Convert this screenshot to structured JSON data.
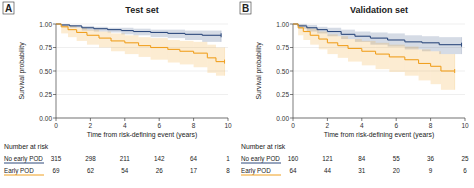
{
  "chart_data": [
    {
      "type": "line",
      "panel_label": "A",
      "title": "Test set",
      "x_label": "Time from risk-defining event (years)",
      "y_label": "Survival probability",
      "xlim": [
        0,
        10
      ],
      "ylim": [
        0,
        1
      ],
      "xticks": [
        0,
        2,
        4,
        6,
        8,
        10
      ],
      "yticks": [
        {
          "value": 0,
          "label": "0.00"
        },
        0.25,
        {
          "value": 0.5,
          "label": "0.50"
        },
        0.75,
        {
          "value": 1,
          "label": "1.00"
        }
      ],
      "line_style": "step",
      "risk_title": "Number at risk",
      "risk_times": [
        0,
        2,
        4,
        6,
        8,
        10
      ],
      "series": [
        {
          "name": "No early POD",
          "color": "#2e4a7d",
          "x": [
            0,
            0.3,
            0.8,
            1.5,
            2.2,
            3,
            3.8,
            4.5,
            5.5,
            6.5,
            7.5,
            8.5,
            9.6
          ],
          "values": [
            1,
            0.99,
            0.98,
            0.96,
            0.95,
            0.94,
            0.93,
            0.92,
            0.91,
            0.9,
            0.89,
            0.88,
            0.88
          ],
          "ci_lower": [
            1,
            0.97,
            0.96,
            0.93,
            0.92,
            0.91,
            0.89,
            0.88,
            0.86,
            0.85,
            0.83,
            0.81,
            0.81
          ],
          "ci_upper": [
            1,
            1,
            0.99,
            0.98,
            0.97,
            0.96,
            0.96,
            0.95,
            0.94,
            0.94,
            0.93,
            0.93,
            0.93
          ],
          "at_risk": [
            315,
            298,
            211,
            142,
            64,
            1
          ]
        },
        {
          "name": "Early POD",
          "color": "#f0a020",
          "x": [
            0,
            0.3,
            0.7,
            1.2,
            1.8,
            2.5,
            3.2,
            4,
            4.8,
            5.5,
            6.5,
            7.2,
            8,
            8.8,
            9.3,
            9.8
          ],
          "values": [
            1,
            0.97,
            0.94,
            0.91,
            0.88,
            0.85,
            0.82,
            0.8,
            0.77,
            0.75,
            0.73,
            0.71,
            0.69,
            0.64,
            0.6,
            0.6
          ],
          "ci_lower": [
            1,
            0.9,
            0.86,
            0.82,
            0.78,
            0.75,
            0.71,
            0.68,
            0.65,
            0.62,
            0.59,
            0.57,
            0.54,
            0.48,
            0.45,
            0.45
          ],
          "ci_upper": [
            1,
            0.99,
            0.98,
            0.96,
            0.94,
            0.92,
            0.9,
            0.88,
            0.86,
            0.85,
            0.83,
            0.82,
            0.81,
            0.78,
            0.75,
            0.75
          ],
          "at_risk": [
            69,
            62,
            54,
            26,
            17,
            8
          ]
        }
      ]
    },
    {
      "type": "line",
      "panel_label": "B",
      "title": "Validation set",
      "x_label": "Time from risk-defining event (years)",
      "y_label": "Survival probability",
      "xlim": [
        0,
        10
      ],
      "ylim": [
        0,
        1
      ],
      "xticks": [
        0,
        2,
        4,
        6,
        8,
        10
      ],
      "yticks": [
        {
          "value": 0,
          "label": "0.00"
        },
        0.25,
        {
          "value": 0.5,
          "label": "0.50"
        },
        0.75,
        {
          "value": 1,
          "label": "1.00"
        }
      ],
      "line_style": "step",
      "risk_title": "Number at risk",
      "risk_times": [
        0,
        2,
        4,
        6,
        8,
        10
      ],
      "series": [
        {
          "name": "No early POD",
          "color": "#2e4a7d",
          "x": [
            0,
            0.3,
            0.8,
            1.4,
            2,
            2.8,
            3.6,
            4.5,
            5.5,
            6.5,
            7.5,
            8.5,
            9.8
          ],
          "values": [
            1,
            0.98,
            0.96,
            0.94,
            0.92,
            0.89,
            0.87,
            0.85,
            0.83,
            0.81,
            0.8,
            0.78,
            0.78
          ],
          "ci_lower": [
            1,
            0.95,
            0.92,
            0.9,
            0.87,
            0.84,
            0.81,
            0.78,
            0.76,
            0.73,
            0.71,
            0.68,
            0.68
          ],
          "ci_upper": [
            1,
            1,
            0.99,
            0.97,
            0.96,
            0.94,
            0.92,
            0.91,
            0.9,
            0.88,
            0.87,
            0.86,
            0.86
          ],
          "at_risk": [
            160,
            121,
            84,
            55,
            36,
            25
          ]
        },
        {
          "name": "Early POD",
          "color": "#f0a020",
          "x": [
            0,
            0.3,
            0.6,
            1,
            1.5,
            2,
            2.6,
            3.2,
            4,
            4.8,
            5.6,
            6.5,
            7.3,
            8,
            8.6,
            9.4
          ],
          "values": [
            1,
            0.96,
            0.92,
            0.88,
            0.84,
            0.8,
            0.77,
            0.74,
            0.71,
            0.68,
            0.65,
            0.62,
            0.58,
            0.55,
            0.5,
            0.5
          ],
          "ci_lower": [
            1,
            0.88,
            0.83,
            0.78,
            0.73,
            0.68,
            0.64,
            0.6,
            0.56,
            0.52,
            0.49,
            0.45,
            0.4,
            0.36,
            0.3,
            0.3
          ],
          "ci_upper": [
            1,
            0.99,
            0.97,
            0.95,
            0.92,
            0.89,
            0.87,
            0.84,
            0.82,
            0.8,
            0.78,
            0.76,
            0.73,
            0.71,
            0.68,
            0.68
          ],
          "at_risk": [
            64,
            44,
            31,
            20,
            9,
            6
          ]
        }
      ]
    }
  ]
}
